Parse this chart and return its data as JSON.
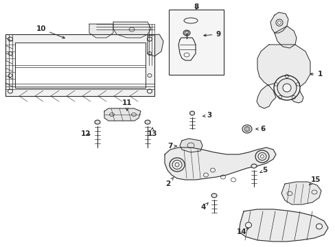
{
  "bg_color": "#ffffff",
  "line_color": "#2a2a2a",
  "fig_width": 4.89,
  "fig_height": 3.6,
  "dpi": 100
}
